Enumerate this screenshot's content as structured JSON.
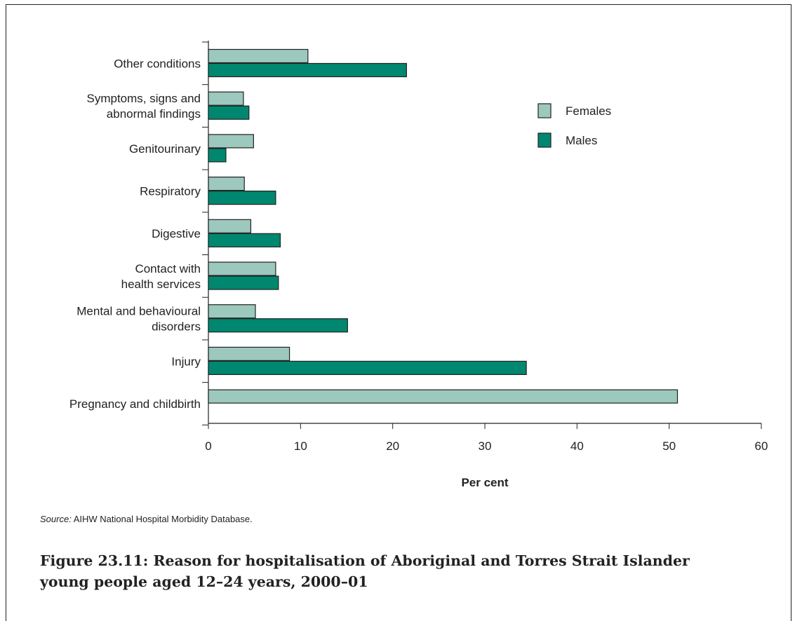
{
  "chart_data": {
    "type": "bar",
    "orientation": "horizontal",
    "categories": [
      [
        "Other conditions"
      ],
      [
        "Symptoms, signs and",
        "abnormal findings"
      ],
      [
        "Genitourinary"
      ],
      [
        "Respiratory"
      ],
      [
        "Digestive"
      ],
      [
        "Contact with",
        "health services"
      ],
      [
        "Mental and behavioural",
        "disorders"
      ],
      [
        "Injury"
      ],
      [
        "Pregnancy and childbirth"
      ]
    ],
    "series": [
      {
        "name": "Females",
        "color": "#9cc8bd",
        "values": [
          10.8,
          3.8,
          4.9,
          3.9,
          4.6,
          7.3,
          5.1,
          8.8,
          50.9
        ]
      },
      {
        "name": "Males",
        "color": "#008770",
        "values": [
          21.5,
          4.4,
          1.9,
          7.3,
          7.8,
          7.6,
          15.1,
          34.5,
          0
        ]
      }
    ],
    "xlim": [
      0,
      60
    ],
    "xticks": [
      "0",
      "10",
      "20",
      "30",
      "40",
      "50",
      "60"
    ],
    "xlabel": "Per cent",
    "legend_position": "top-right",
    "grid": false
  },
  "source": {
    "label": "Source:",
    "text": " AIHW National Hospital Morbidity Database."
  },
  "caption": "Figure 23.11: Reason for hospitalisation of Aboriginal and Torres Strait Islander young people aged 12–24 years, 2000–01"
}
